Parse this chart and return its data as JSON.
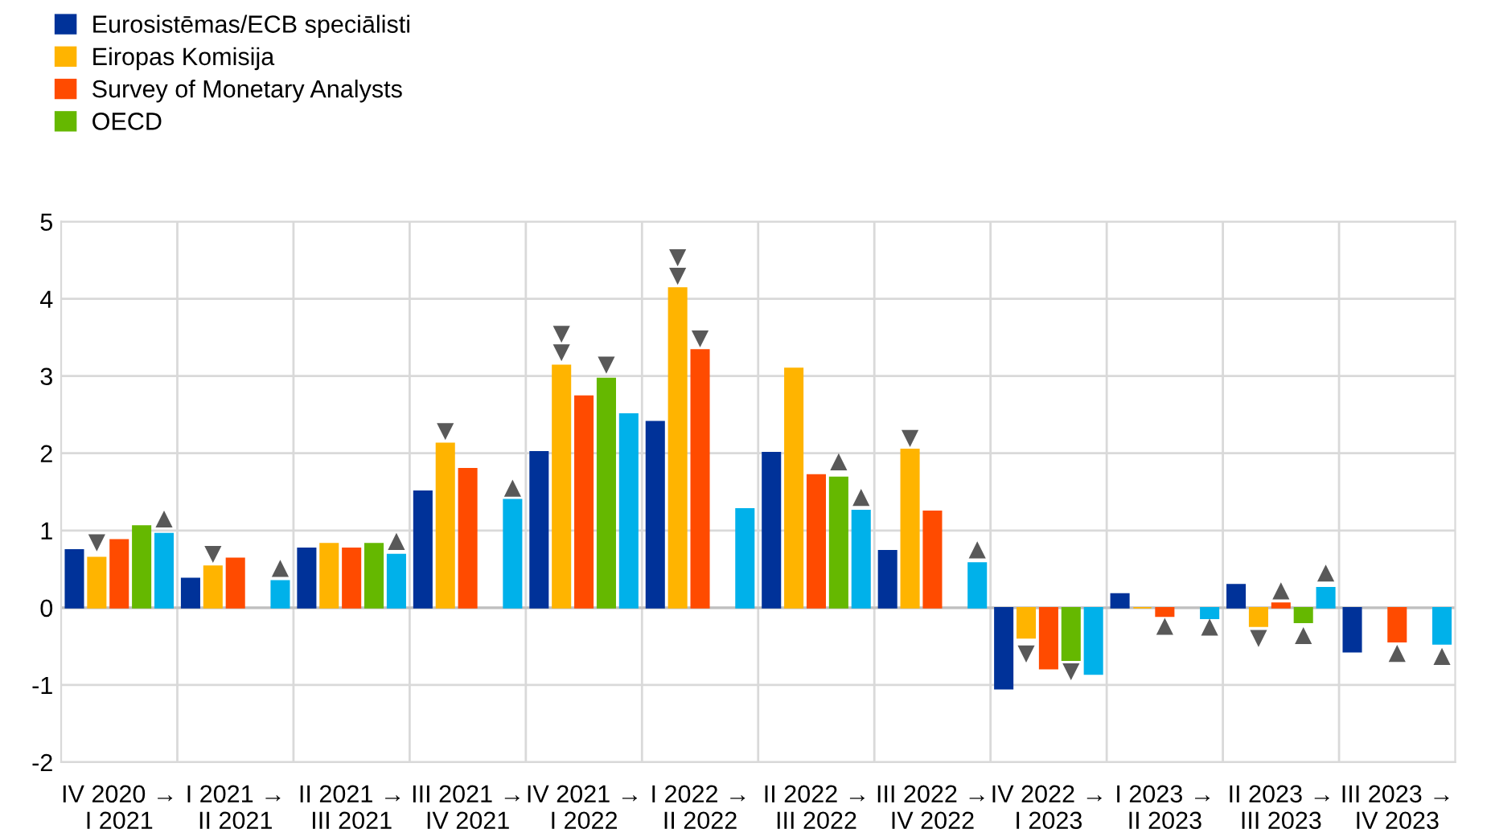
{
  "chart_data": {
    "type": "bar",
    "categories": [
      "IV 2020 →\nI 2021",
      "I 2021 →\nII 2021",
      "II 2021 →\nIII 2021",
      "III 2021 →\nIV 2021",
      "IV 2021 →\nI 2022",
      "I 2022 →\nII 2022",
      "II 2022 →\nIII 2022",
      "III 2022 →\nIV 2022",
      "IV 2022 →\nI 2023",
      "I 2023 →\nII 2023",
      "II 2023 →\nIII 2023",
      "III 2023 →\nIV 2023"
    ],
    "series": [
      {
        "name": "Eurosistēmas/ECB speciālisti",
        "color": "#003299",
        "values": [
          0.75,
          0.38,
          0.77,
          1.51,
          2.02,
          2.41,
          2.01,
          0.74,
          -1.05,
          0.18,
          0.3,
          -0.57
        ]
      },
      {
        "name": "Eiropas Komisija",
        "color": "#ffb400",
        "values": [
          0.65,
          0.54,
          0.83,
          2.13,
          3.14,
          4.14,
          3.1,
          2.05,
          -0.39,
          0.0,
          -0.24,
          null
        ]
      },
      {
        "type": "scatter",
        "marker": "triangle_down",
        "color": "#595959",
        "values": [
          0.85,
          0.7,
          null,
          2.29,
          3.31,
          4.3,
          null,
          2.2,
          -0.59,
          null,
          -0.39,
          null
        ]
      },
      {
        "type": "scatter",
        "marker": "triangle_down",
        "color": "#595959",
        "values": [
          null,
          null,
          null,
          null,
          3.55,
          4.54,
          null,
          null,
          null,
          null,
          null,
          null
        ]
      },
      {
        "name": "Survey of Monetary Analysts",
        "color": "#ff4b00",
        "values": [
          0.88,
          0.64,
          0.77,
          1.8,
          2.74,
          3.34,
          1.72,
          1.25,
          -0.79,
          -0.11,
          0.06,
          -0.44
        ]
      },
      {
        "type": "scatter",
        "marker": "triangle_down",
        "color": "#595959",
        "values": [
          null,
          null,
          null,
          null,
          null,
          3.49,
          null,
          null,
          null,
          null,
          null,
          null
        ]
      },
      {
        "type": "scatter",
        "marker": "triangle",
        "color": "#595959",
        "values": [
          null,
          null,
          null,
          null,
          null,
          null,
          null,
          null,
          null,
          -0.25,
          0.21,
          -0.6
        ]
      },
      {
        "name": "OECD",
        "color": "#65b800",
        "values": [
          1.06,
          null,
          0.83,
          null,
          2.97,
          null,
          1.69,
          null,
          -0.68,
          null,
          -0.19,
          null
        ]
      },
      {
        "type": "scatter",
        "marker": "triangle_down",
        "color": "#595959",
        "values": [
          null,
          null,
          null,
          null,
          3.15,
          null,
          null,
          null,
          -0.82,
          null,
          null,
          null
        ]
      },
      {
        "type": "scatter",
        "marker": "triangle",
        "color": "#595959",
        "values": [
          null,
          null,
          null,
          null,
          null,
          null,
          1.88,
          null,
          null,
          null,
          -0.37,
          null
        ]
      },
      {
        "color": "#00b1ea",
        "values": [
          0.96,
          0.35,
          0.69,
          1.4,
          2.51,
          1.28,
          1.26,
          0.58,
          -0.86,
          -0.14,
          0.26,
          -0.47
        ]
      },
      {
        "type": "scatter",
        "marker": "triangle",
        "color": "#595959",
        "values": [
          1.14,
          0.5,
          0.85,
          1.54,
          null,
          null,
          1.42,
          0.74,
          null,
          -0.26,
          0.44,
          -0.64
        ]
      }
    ],
    "ylim": [
      -2,
      5
    ],
    "yticks": [
      -2,
      -1,
      0,
      1,
      2,
      3,
      4,
      5
    ],
    "grid": true,
    "legend": "top left"
  }
}
